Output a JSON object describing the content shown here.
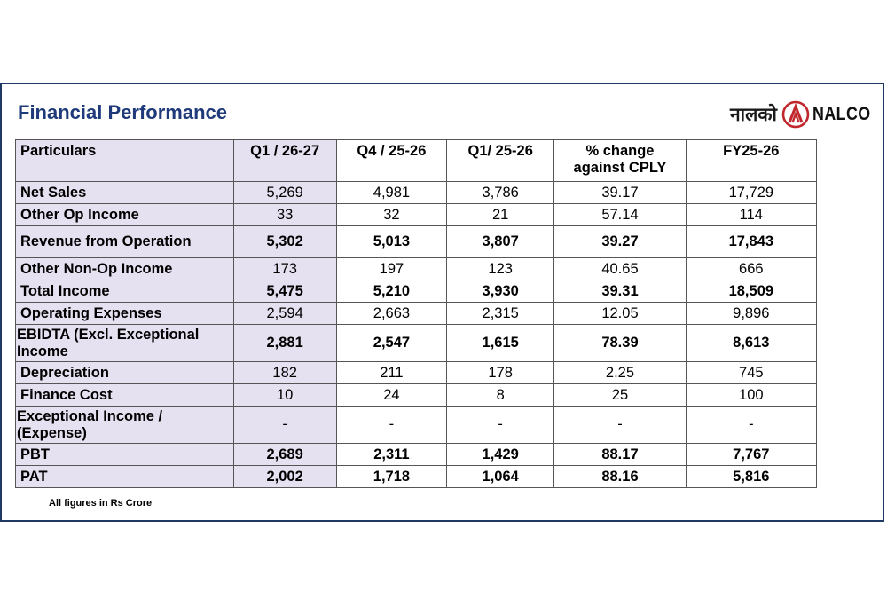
{
  "page": {
    "title": "Financial Performance",
    "logo_hindi": "नालको",
    "logo_text": "NALCO",
    "footnote": "All figures in Rs Crore"
  },
  "colors": {
    "title": "#1f3a7a",
    "frame": "#1f3864",
    "shade": "#e6e1f0",
    "logo_red": "#c0282d"
  },
  "table": {
    "headers": [
      "Particulars",
      "Q1 / 26-27",
      "Q4 / 25-26",
      "Q1/ 25-26",
      "% change against CPLY",
      "FY25-26"
    ],
    "header_pct_line1": "% change",
    "header_pct_line2": "against CPLY",
    "rows": [
      {
        "label": "Net Sales",
        "values": [
          "5,269",
          "4,981",
          "3,786",
          "39.17",
          "17,729"
        ],
        "bold": false
      },
      {
        "label": "Other Op Income",
        "values": [
          "33",
          "32",
          "21",
          "57.14",
          "114"
        ],
        "bold": false
      },
      {
        "label": "Revenue from Operation",
        "values": [
          "5,302",
          "5,013",
          "3,807",
          "39.27",
          "17,843"
        ],
        "bold": true
      },
      {
        "label": "Other Non-Op Income",
        "values": [
          "173",
          "197",
          "123",
          "40.65",
          "666"
        ],
        "bold": false
      },
      {
        "label": "Total Income",
        "values": [
          "5,475",
          "5,210",
          "3,930",
          "39.31",
          "18,509"
        ],
        "bold": true
      },
      {
        "label": "Operating Expenses",
        "values": [
          "2,594",
          "2,663",
          "2,315",
          "12.05",
          "9,896"
        ],
        "bold": false
      },
      {
        "label": "EBIDTA (Excl. Exceptional Income",
        "values": [
          "2,881",
          "2,547",
          "1,615",
          "78.39",
          "8,613"
        ],
        "bold": true
      },
      {
        "label": "Depreciation",
        "values": [
          "182",
          "211",
          "178",
          "2.25",
          "745"
        ],
        "bold": false
      },
      {
        "label": "Finance Cost",
        "values": [
          "10",
          "24",
          "8",
          "25",
          "100"
        ],
        "bold": false
      },
      {
        "label": "Exceptional Income / (Expense)",
        "values": [
          "-",
          "-",
          "-",
          "-",
          "-"
        ],
        "bold": false
      },
      {
        "label": "PBT",
        "values": [
          "2,689",
          "2,311",
          "1,429",
          "88.17",
          "7,767"
        ],
        "bold": true
      },
      {
        "label": "PAT",
        "values": [
          "2,002",
          "1,718",
          "1,064",
          "88.16",
          "5,816"
        ],
        "bold": true
      }
    ]
  }
}
